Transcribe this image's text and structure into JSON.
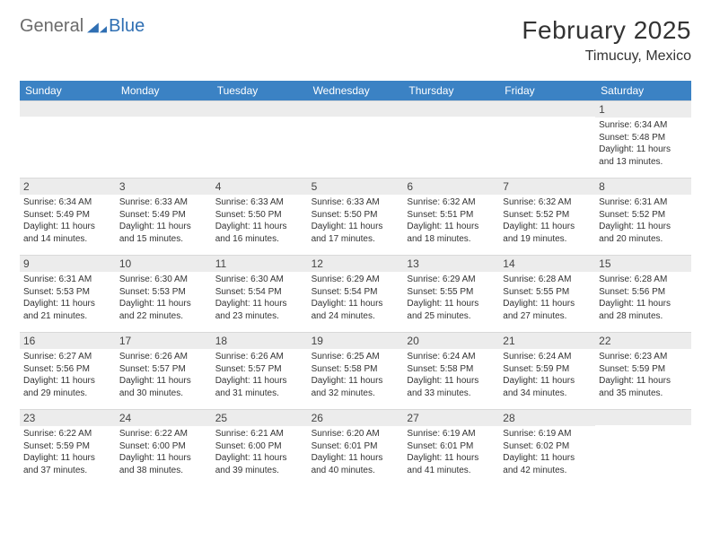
{
  "logo": {
    "general": "General",
    "blue": "Blue",
    "mark_color": "#2f6fb3"
  },
  "header": {
    "month_title": "February 2025",
    "location": "Timucuy, Mexico"
  },
  "colors": {
    "header_bar": "#3b82c4",
    "daynum_bg": "#ececec",
    "text": "#333333",
    "logo_gray": "#6b6b6b",
    "logo_blue": "#2f6fb3"
  },
  "weekdays": [
    "Sunday",
    "Monday",
    "Tuesday",
    "Wednesday",
    "Thursday",
    "Friday",
    "Saturday"
  ],
  "weeks": [
    [
      {
        "n": "",
        "sr": "",
        "ss": "",
        "dl": ""
      },
      {
        "n": "",
        "sr": "",
        "ss": "",
        "dl": ""
      },
      {
        "n": "",
        "sr": "",
        "ss": "",
        "dl": ""
      },
      {
        "n": "",
        "sr": "",
        "ss": "",
        "dl": ""
      },
      {
        "n": "",
        "sr": "",
        "ss": "",
        "dl": ""
      },
      {
        "n": "",
        "sr": "",
        "ss": "",
        "dl": ""
      },
      {
        "n": "1",
        "sr": "Sunrise: 6:34 AM",
        "ss": "Sunset: 5:48 PM",
        "dl": "Daylight: 11 hours and 13 minutes."
      }
    ],
    [
      {
        "n": "2",
        "sr": "Sunrise: 6:34 AM",
        "ss": "Sunset: 5:49 PM",
        "dl": "Daylight: 11 hours and 14 minutes."
      },
      {
        "n": "3",
        "sr": "Sunrise: 6:33 AM",
        "ss": "Sunset: 5:49 PM",
        "dl": "Daylight: 11 hours and 15 minutes."
      },
      {
        "n": "4",
        "sr": "Sunrise: 6:33 AM",
        "ss": "Sunset: 5:50 PM",
        "dl": "Daylight: 11 hours and 16 minutes."
      },
      {
        "n": "5",
        "sr": "Sunrise: 6:33 AM",
        "ss": "Sunset: 5:50 PM",
        "dl": "Daylight: 11 hours and 17 minutes."
      },
      {
        "n": "6",
        "sr": "Sunrise: 6:32 AM",
        "ss": "Sunset: 5:51 PM",
        "dl": "Daylight: 11 hours and 18 minutes."
      },
      {
        "n": "7",
        "sr": "Sunrise: 6:32 AM",
        "ss": "Sunset: 5:52 PM",
        "dl": "Daylight: 11 hours and 19 minutes."
      },
      {
        "n": "8",
        "sr": "Sunrise: 6:31 AM",
        "ss": "Sunset: 5:52 PM",
        "dl": "Daylight: 11 hours and 20 minutes."
      }
    ],
    [
      {
        "n": "9",
        "sr": "Sunrise: 6:31 AM",
        "ss": "Sunset: 5:53 PM",
        "dl": "Daylight: 11 hours and 21 minutes."
      },
      {
        "n": "10",
        "sr": "Sunrise: 6:30 AM",
        "ss": "Sunset: 5:53 PM",
        "dl": "Daylight: 11 hours and 22 minutes."
      },
      {
        "n": "11",
        "sr": "Sunrise: 6:30 AM",
        "ss": "Sunset: 5:54 PM",
        "dl": "Daylight: 11 hours and 23 minutes."
      },
      {
        "n": "12",
        "sr": "Sunrise: 6:29 AM",
        "ss": "Sunset: 5:54 PM",
        "dl": "Daylight: 11 hours and 24 minutes."
      },
      {
        "n": "13",
        "sr": "Sunrise: 6:29 AM",
        "ss": "Sunset: 5:55 PM",
        "dl": "Daylight: 11 hours and 25 minutes."
      },
      {
        "n": "14",
        "sr": "Sunrise: 6:28 AM",
        "ss": "Sunset: 5:55 PM",
        "dl": "Daylight: 11 hours and 27 minutes."
      },
      {
        "n": "15",
        "sr": "Sunrise: 6:28 AM",
        "ss": "Sunset: 5:56 PM",
        "dl": "Daylight: 11 hours and 28 minutes."
      }
    ],
    [
      {
        "n": "16",
        "sr": "Sunrise: 6:27 AM",
        "ss": "Sunset: 5:56 PM",
        "dl": "Daylight: 11 hours and 29 minutes."
      },
      {
        "n": "17",
        "sr": "Sunrise: 6:26 AM",
        "ss": "Sunset: 5:57 PM",
        "dl": "Daylight: 11 hours and 30 minutes."
      },
      {
        "n": "18",
        "sr": "Sunrise: 6:26 AM",
        "ss": "Sunset: 5:57 PM",
        "dl": "Daylight: 11 hours and 31 minutes."
      },
      {
        "n": "19",
        "sr": "Sunrise: 6:25 AM",
        "ss": "Sunset: 5:58 PM",
        "dl": "Daylight: 11 hours and 32 minutes."
      },
      {
        "n": "20",
        "sr": "Sunrise: 6:24 AM",
        "ss": "Sunset: 5:58 PM",
        "dl": "Daylight: 11 hours and 33 minutes."
      },
      {
        "n": "21",
        "sr": "Sunrise: 6:24 AM",
        "ss": "Sunset: 5:59 PM",
        "dl": "Daylight: 11 hours and 34 minutes."
      },
      {
        "n": "22",
        "sr": "Sunrise: 6:23 AM",
        "ss": "Sunset: 5:59 PM",
        "dl": "Daylight: 11 hours and 35 minutes."
      }
    ],
    [
      {
        "n": "23",
        "sr": "Sunrise: 6:22 AM",
        "ss": "Sunset: 5:59 PM",
        "dl": "Daylight: 11 hours and 37 minutes."
      },
      {
        "n": "24",
        "sr": "Sunrise: 6:22 AM",
        "ss": "Sunset: 6:00 PM",
        "dl": "Daylight: 11 hours and 38 minutes."
      },
      {
        "n": "25",
        "sr": "Sunrise: 6:21 AM",
        "ss": "Sunset: 6:00 PM",
        "dl": "Daylight: 11 hours and 39 minutes."
      },
      {
        "n": "26",
        "sr": "Sunrise: 6:20 AM",
        "ss": "Sunset: 6:01 PM",
        "dl": "Daylight: 11 hours and 40 minutes."
      },
      {
        "n": "27",
        "sr": "Sunrise: 6:19 AM",
        "ss": "Sunset: 6:01 PM",
        "dl": "Daylight: 11 hours and 41 minutes."
      },
      {
        "n": "28",
        "sr": "Sunrise: 6:19 AM",
        "ss": "Sunset: 6:02 PM",
        "dl": "Daylight: 11 hours and 42 minutes."
      },
      {
        "n": "",
        "sr": "",
        "ss": "",
        "dl": ""
      }
    ]
  ]
}
